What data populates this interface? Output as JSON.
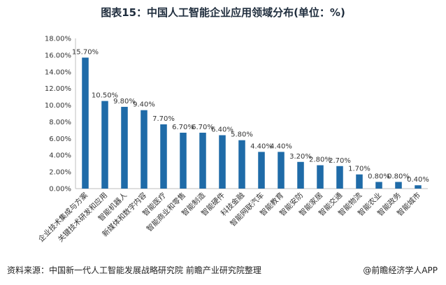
{
  "chart_data": {
    "type": "bar",
    "title": "图表15：中国人工智能企业应用领域分布(单位：%)",
    "categories": [
      "企业技术集成与方案",
      "关键技术研发和应用",
      "智能机器人",
      "新媒体和数字内容",
      "智能医疗",
      "智能商业和零售",
      "智能制造",
      "智能硬件",
      "科技金融",
      "智能网联汽车",
      "智能教育",
      "智能安防",
      "智能家居",
      "智能交通",
      "智能物流",
      "智能农业",
      "智能政务",
      "智能城市"
    ],
    "values": [
      15.7,
      10.5,
      9.8,
      9.4,
      7.7,
      6.7,
      6.7,
      6.4,
      5.8,
      4.4,
      4.4,
      3.2,
      2.8,
      2.7,
      1.7,
      0.8,
      0.8,
      0.4
    ],
    "value_labels": [
      "15.70%",
      "10.50%",
      "9.80%",
      "9.40%",
      "7.70%",
      "6.70%",
      "6.70%",
      "6.40%",
      "5.80%",
      "4.40%",
      "4.40%",
      "3.20%",
      "2.80%",
      "2.70%",
      "1.70%",
      "0.80%",
      "0.80%",
      "0.40%"
    ],
    "yticks": [
      "0.00%",
      "2.00%",
      "4.00%",
      "6.00%",
      "8.00%",
      "10.00%",
      "12.00%",
      "14.00%",
      "16.00%",
      "18.00%"
    ],
    "ylim": [
      0,
      18
    ],
    "xlabel": "",
    "ylabel": "",
    "bar_color": "#1f6ba8",
    "grid": false,
    "legend": "none"
  },
  "footer": {
    "source": "资料来源：中国新一代人工智能发展战略研究院 前瞻产业研究院整理",
    "brand": "@前瞻经济学人APP"
  }
}
